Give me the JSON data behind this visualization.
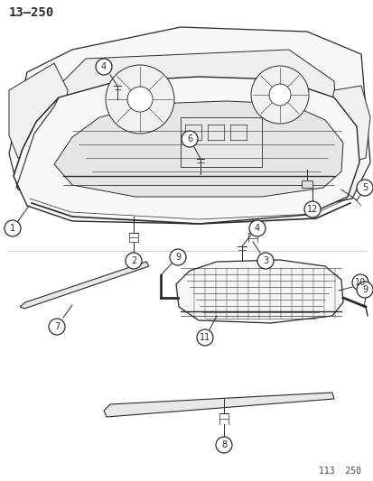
{
  "title_top_left": "13–250",
  "title_bottom_right": "113  250",
  "bg": "#ffffff",
  "lc": "#2a2a2a",
  "fig_w": 4.14,
  "fig_h": 5.33,
  "dpi": 100
}
